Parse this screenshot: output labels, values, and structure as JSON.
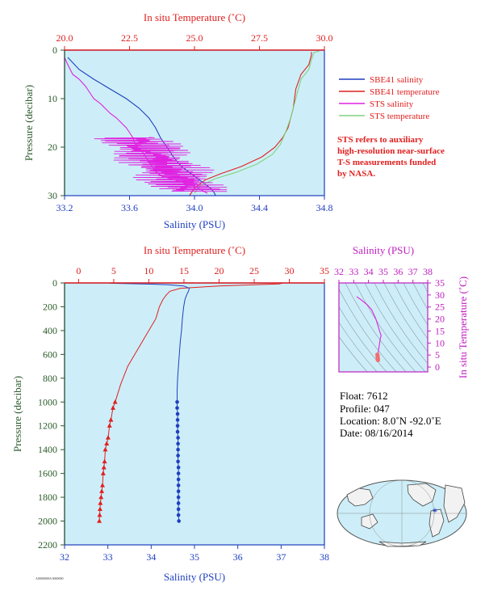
{
  "chart_data": [
    {
      "type": "line",
      "panel": "top-profile",
      "top_axis_label": "In situ Temperature (˚C)",
      "bottom_axis_label": "Salinity (PSU)",
      "ylabel": "Pressure (decibar)",
      "temp_ticks": [
        "20.0",
        "22.5",
        "25.0",
        "27.5",
        "30.0"
      ],
      "temp_range": [
        20.0,
        30.0
      ],
      "sal_ticks": [
        "33.2",
        "33.6",
        "34.0",
        "34.4",
        "34.8"
      ],
      "sal_range": [
        33.2,
        34.8
      ],
      "p_ticks": [
        "0",
        "10",
        "20",
        "30"
      ],
      "p_range": [
        0,
        30
      ],
      "legend": [
        {
          "name": "SBE41 salinity",
          "color": "#1f3fbf"
        },
        {
          "name": "SBE41 temperature",
          "color": "#e02020"
        },
        {
          "name": "STS salinity",
          "color": "#e020e0"
        },
        {
          "name": "STS temperature",
          "color": "#7fd27f"
        }
      ],
      "note": [
        "STS refers to auxiliary",
        "high-resolution near-surface",
        "T-S measurements funded",
        "by NASA."
      ],
      "series": [
        {
          "name": "SBE41 salinity",
          "color": "#1f3fbf",
          "axis": "salinity",
          "x": [
            33.22,
            33.29,
            33.38,
            33.48,
            33.58,
            33.66,
            33.72,
            33.76,
            33.79,
            33.83,
            33.87,
            33.92,
            33.98,
            34.02,
            34.06,
            34.1,
            34.12,
            34.13
          ],
          "y": [
            1.5,
            4,
            6,
            8,
            10,
            12,
            14,
            16,
            18,
            20,
            22,
            24,
            25.5,
            26.5,
            27.5,
            28.5,
            29.3,
            30
          ]
        },
        {
          "name": "SBE41 temperature",
          "color": "#e02020",
          "axis": "temperature",
          "x": [
            29.5,
            29.5,
            29.4,
            29.1,
            28.9,
            28.8,
            28.6,
            28.4,
            28.1,
            27.6,
            26.8,
            26.0,
            25.4,
            25.0,
            24.8
          ],
          "y": [
            0.4,
            1,
            3,
            5,
            8,
            12,
            16,
            18,
            20,
            22,
            24,
            25.5,
            26.8,
            28.5,
            30
          ]
        },
        {
          "name": "STS salinity",
          "color": "#e020e0",
          "axis": "salinity",
          "x": [
            33.2,
            33.22,
            33.25,
            33.29,
            33.33,
            33.36,
            33.38,
            33.42,
            33.45,
            33.48,
            33.52,
            33.55,
            33.58,
            33.6,
            33.62,
            33.63,
            33.64,
            33.65,
            33.66,
            33.68,
            33.7,
            33.72,
            33.74,
            33.76,
            33.78,
            33.8,
            33.85,
            33.9,
            33.95,
            34.0,
            34.05,
            34.08
          ],
          "y": [
            1.5,
            3,
            5,
            6,
            7.5,
            9,
            10,
            11,
            12,
            13,
            14,
            15,
            16,
            17,
            18,
            19,
            19.5,
            20,
            20.5,
            21,
            22,
            23,
            24,
            25,
            25.5,
            26,
            26.5,
            27,
            27.5,
            28,
            29,
            29.5
          ]
        },
        {
          "name": "STS temperature",
          "color": "#7fd27f",
          "axis": "temperature",
          "x": [
            29.8,
            29.6,
            29.5,
            29.4,
            29.1,
            28.9,
            28.7,
            28.5,
            28.3,
            28.0,
            27.4,
            26.6,
            25.8,
            25.2,
            25.0
          ],
          "y": [
            0.2,
            0.5,
            2,
            4,
            6,
            10,
            14,
            17,
            19.5,
            21.5,
            23.5,
            25.2,
            26.5,
            28,
            29.5
          ]
        }
      ]
    },
    {
      "type": "line",
      "panel": "main-profile",
      "top_axis_label": "In situ Temperature (˚C)",
      "bottom_axis_label": "Salinity (PSU)",
      "ylabel": "Pressure (decibar)",
      "temp_ticks": [
        "0",
        "5",
        "10",
        "15",
        "20",
        "25",
        "30",
        "35"
      ],
      "temp_range": [
        -2,
        35
      ],
      "sal_ticks": [
        "32",
        "33",
        "34",
        "35",
        "36",
        "37",
        "38"
      ],
      "sal_range": [
        32,
        38
      ],
      "p_ticks": [
        "0",
        "200",
        "400",
        "600",
        "800",
        "1000",
        "1200",
        "1400",
        "1600",
        "1800",
        "2000",
        "2200"
      ],
      "p_range": [
        0,
        2200
      ],
      "series": [
        {
          "name": "temperature",
          "color": "#e02020",
          "axis": "temperature",
          "x": [
            29.0,
            28.5,
            25,
            20,
            14.5,
            13.0,
            12.5,
            12.0,
            11.5,
            11.0,
            10.0,
            9.0,
            8.0,
            7.0,
            6.0,
            5.2
          ],
          "y": [
            3,
            8,
            15,
            25,
            45,
            70,
            100,
            140,
            200,
            300,
            400,
            500,
            600,
            700,
            850,
            1000
          ],
          "markers": {
            "x": [
              5.2,
              4.9,
              4.6,
              4.4,
              4.2,
              4.0,
              3.8,
              3.7,
              3.6,
              3.5,
              3.4,
              3.3,
              3.2,
              3.1,
              3.05,
              3.0,
              2.95
            ],
            "y": [
              1000,
              1050,
              1150,
              1200,
              1300,
              1350,
              1400,
              1500,
              1550,
              1600,
              1700,
              1750,
              1800,
              1850,
              1900,
              1950,
              2000
            ]
          }
        },
        {
          "name": "salinity",
          "color": "#1f3fbf",
          "axis": "salinity",
          "x": [
            33.05,
            33.5,
            34.0,
            34.4,
            34.75,
            34.88,
            34.86,
            34.82,
            34.78,
            34.75,
            34.72,
            34.7,
            34.67,
            34.65,
            34.63,
            34.61,
            34.6,
            34.6
          ],
          "y": [
            3,
            6,
            10,
            15,
            25,
            45,
            70,
            100,
            140,
            200,
            300,
            400,
            500,
            600,
            700,
            800,
            900,
            1000
          ],
          "markers": {
            "x": [
              34.6,
              34.6,
              34.61,
              34.61,
              34.61,
              34.61,
              34.62,
              34.62,
              34.62,
              34.62,
              34.62,
              34.63,
              34.63,
              34.63,
              34.63,
              34.63,
              34.63,
              34.63,
              34.63,
              34.63,
              34.64
            ],
            "y": [
              1000,
              1050,
              1100,
              1150,
              1200,
              1250,
              1300,
              1350,
              1400,
              1450,
              1500,
              1550,
              1600,
              1650,
              1700,
              1750,
              1800,
              1850,
              1900,
              1950,
              2000
            ]
          }
        }
      ]
    },
    {
      "type": "scatter",
      "panel": "ts-diagram",
      "top_axis_label": "Salinity (PSU)",
      "right_axis_label": "In situ Temperature (˚C)",
      "sal_ticks": [
        "32",
        "33",
        "34",
        "35",
        "36",
        "37",
        "38"
      ],
      "sal_range": [
        32,
        38
      ],
      "temp_ticks": [
        "0",
        "5",
        "10",
        "15",
        "20",
        "25",
        "30",
        "35"
      ],
      "temp_range": [
        -2,
        35
      ],
      "line": {
        "color": "#e020e0",
        "x": [
          33.2,
          33.5,
          33.9,
          34.2,
          34.5,
          34.75,
          34.85,
          34.8,
          34.75,
          34.7,
          34.65
        ],
        "y": [
          29.3,
          28.0,
          26.0,
          24.0,
          20.0,
          15.0,
          13.0,
          12.0,
          10.0,
          8.0,
          6.0
        ]
      },
      "markers": {
        "color": "#f07070",
        "x": [
          34.6,
          34.61,
          34.62,
          34.62,
          34.63,
          34.63,
          34.64
        ],
        "y": [
          5.2,
          4.6,
          4.0,
          3.6,
          3.3,
          3.0,
          2.9
        ]
      }
    }
  ],
  "float_info": {
    "float": "Float: 7612",
    "profile": "Profile: 047",
    "location": "Location: 8.0˚N  -92.0˚E",
    "date": "Date:  08/16/2014"
  },
  "footer_code": "A0000000A 0000000",
  "colors": {
    "plot_bg": "#cdeef8",
    "temp_axis": "#e02020",
    "sal_axis": "#1f3fbf",
    "ts_axis": "#c020c0",
    "pressure_label": "#2a5a2a"
  }
}
